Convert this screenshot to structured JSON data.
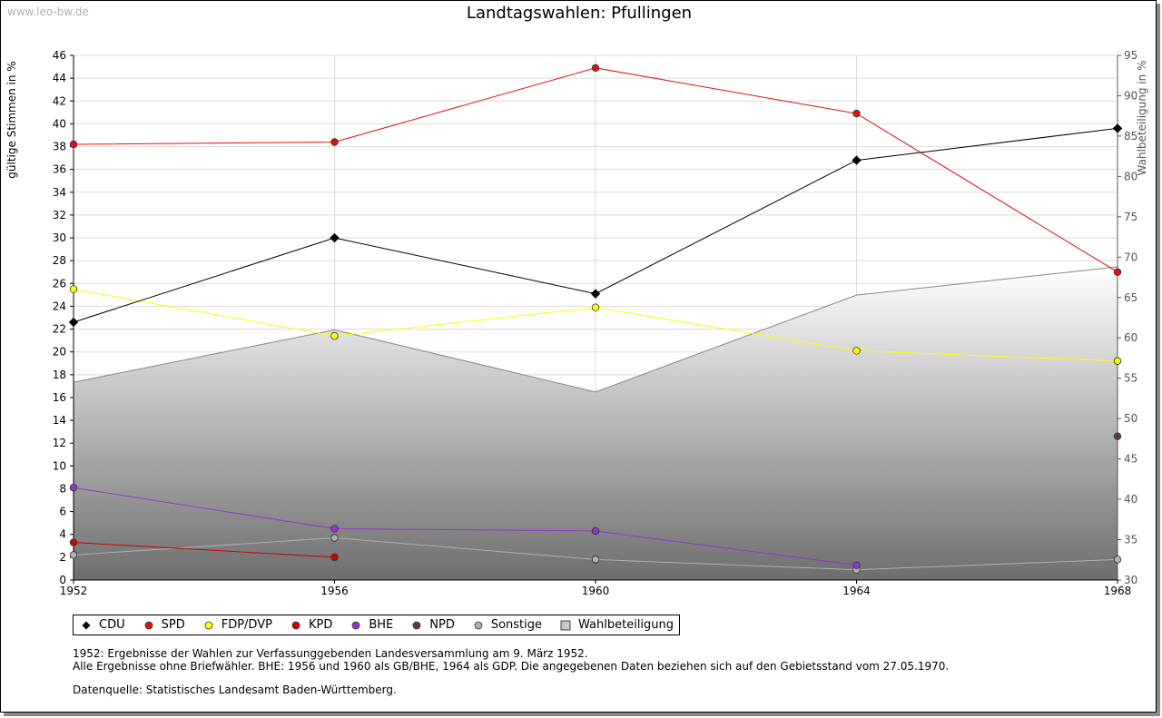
{
  "watermark": "www.leo-bw.de",
  "notes": {
    "line1": "1952: Ergebnisse der Wahlen zur Verfassunggebenden Landesversammlung am 9. März 1952.",
    "line2": "Alle Ergebnisse ohne Briefwähler. BHE: 1956 und 1960 als GB/BHE, 1964 als GDP. Die angegebenen Daten beziehen sich auf den Gebietsstand vom 27.05.1970.",
    "source": "Datenquelle: Statistisches Landesamt Baden-Württemberg."
  },
  "chart_data": {
    "type": "line",
    "title": "Landtagswahlen: Pfullingen",
    "ylabel": "gültige Stimmen in %",
    "y2label": "Wahlbeteiligung in %",
    "xlabel": "",
    "x": [
      "1952",
      "1956",
      "1960",
      "1964",
      "1968"
    ],
    "ylim": [
      0,
      46
    ],
    "y_ticks": [
      0,
      2,
      4,
      6,
      8,
      10,
      12,
      14,
      16,
      18,
      20,
      22,
      24,
      26,
      28,
      30,
      32,
      34,
      36,
      38,
      40,
      42,
      44,
      46
    ],
    "y2lim": [
      30,
      95
    ],
    "y2_ticks": [
      30,
      35,
      40,
      45,
      50,
      55,
      60,
      65,
      70,
      75,
      80,
      85,
      90,
      95
    ],
    "grid": true,
    "legend_position": "bottom",
    "series": [
      {
        "name": "CDU",
        "color": "#000000",
        "values": [
          22.6,
          30.0,
          25.1,
          36.8,
          39.6
        ]
      },
      {
        "name": "SPD",
        "color": "#dd1111",
        "values": [
          38.2,
          38.4,
          44.9,
          40.9,
          27.0
        ]
      },
      {
        "name": "FDP/DVP",
        "color": "#ffff00",
        "values": [
          25.5,
          21.4,
          23.9,
          20.1,
          19.2
        ]
      },
      {
        "name": "KPD",
        "color": "#cc0000",
        "values": [
          3.3,
          2.0,
          null,
          null,
          null
        ]
      },
      {
        "name": "BHE",
        "color": "#9933cc",
        "values": [
          8.1,
          4.5,
          4.3,
          1.3,
          null
        ]
      },
      {
        "name": "NPD",
        "color": "#5c4033",
        "values": [
          null,
          null,
          null,
          null,
          12.6
        ]
      },
      {
        "name": "Sonstige",
        "color": "#b0b0b0",
        "values": [
          2.2,
          3.7,
          1.8,
          0.9,
          1.8
        ]
      },
      {
        "name": "Wahlbeteiligung",
        "color": "#888888",
        "axis": "right",
        "type": "area",
        "values": [
          54.5,
          61.0,
          53.3,
          65.3,
          68.8
        ]
      }
    ]
  }
}
